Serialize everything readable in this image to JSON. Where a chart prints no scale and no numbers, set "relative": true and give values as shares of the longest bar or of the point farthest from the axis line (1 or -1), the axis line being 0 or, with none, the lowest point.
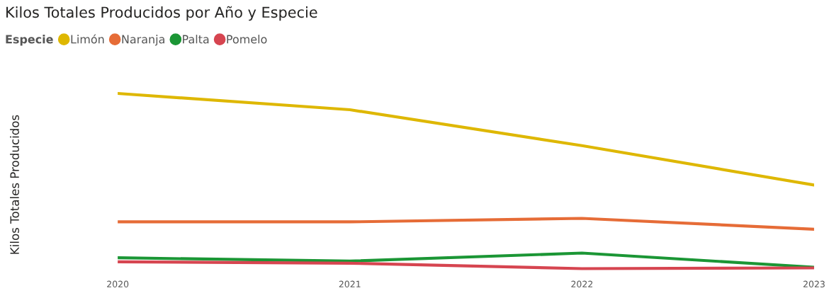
{
  "chart_data": {
    "type": "line",
    "title": "Kilos Totales Producidos por Año y Especie",
    "ylabel": "Kilos Totales Producidos",
    "legend_title": "Especie",
    "legend": "top left",
    "relative": true,
    "categories": [
      "2020",
      "2021",
      "2022",
      "2023"
    ],
    "series": [
      {
        "name": "Limón",
        "color": "#deb700",
        "values": [
          1,
          0.907,
          0.702,
          0.477
        ]
      },
      {
        "name": "Naranja",
        "color": "#e66c37",
        "values": [
          0.267,
          0.267,
          0.287,
          0.225
        ]
      },
      {
        "name": "Palta",
        "color": "#1b9635",
        "values": [
          0.062,
          0.043,
          0.089,
          0.008
        ]
      },
      {
        "name": "Pomelo",
        "color": "#d64550",
        "values": [
          0.039,
          0.031,
          0,
          0.004
        ]
      }
    ]
  }
}
